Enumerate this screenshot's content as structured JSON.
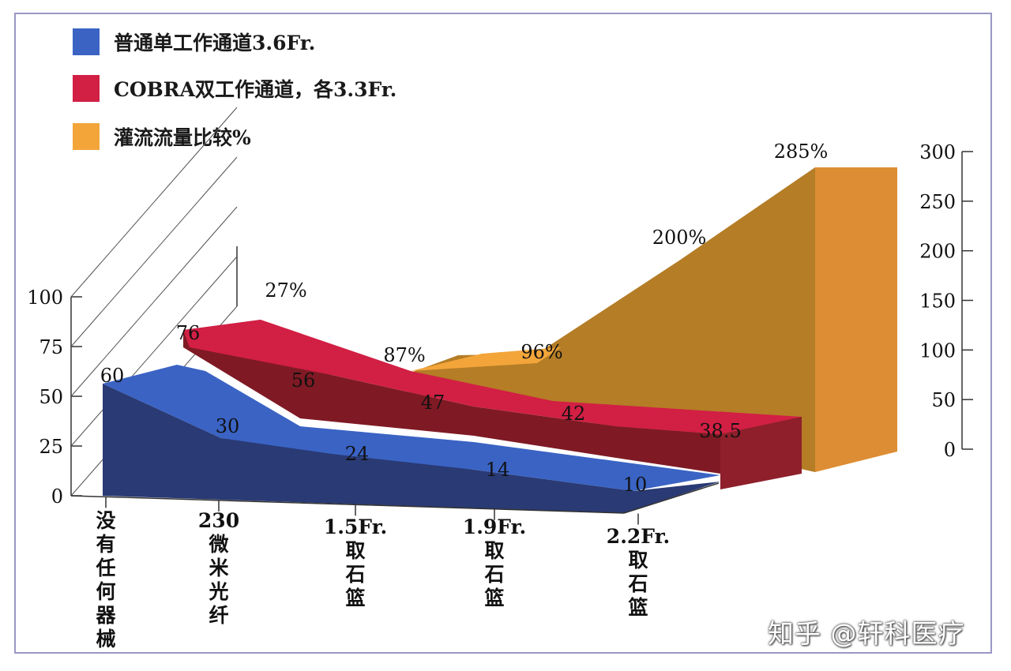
{
  "chart_data": {
    "type": "area",
    "categories": [
      "没有任何器械",
      "230微米光纤",
      "1.5Fr.取石篮",
      "1.9Fr.取石篮",
      "2.2Fr.取石篮"
    ],
    "category_lines": [
      [
        "没",
        "有",
        "任",
        "何",
        "器",
        "械"
      ],
      [
        "230",
        "微",
        "米",
        "光",
        "纤"
      ],
      [
        "1.5Fr.",
        "取",
        "石",
        "篮"
      ],
      [
        "1.9Fr.",
        "取",
        "石",
        "篮"
      ],
      [
        "2.2Fr.",
        "取",
        "石",
        "篮"
      ]
    ],
    "series": [
      {
        "name": "普通单工作通道3.6Fr.",
        "values": [
          60,
          30,
          24,
          14,
          10
        ],
        "labels": [
          "60",
          "30",
          "24",
          "14",
          "10"
        ],
        "color": "#3a63c4",
        "dark": "#2a3a74"
      },
      {
        "name": "COBRA双工作通道，各3.3Fr.",
        "values": [
          76,
          56,
          47,
          42,
          38.5
        ],
        "labels": [
          "76",
          "56",
          "47",
          "42",
          "38.5"
        ],
        "color": "#d21f44",
        "dark": "#7f1a24"
      },
      {
        "name": "灌流流量比较%",
        "values": [
          27,
          87,
          96,
          200,
          285
        ],
        "labels": [
          "27%",
          "87%",
          "96%",
          "200%",
          "285%"
        ],
        "color": "#f3a53a",
        "dark": "#b47d26"
      }
    ],
    "left_axis": {
      "ticks": [
        "0",
        "25",
        "50",
        "75",
        "100"
      ],
      "ylim": [
        0,
        100
      ]
    },
    "right_axis": {
      "ticks": [
        "0",
        "50",
        "100",
        "150",
        "200",
        "250",
        "300"
      ],
      "ylim": [
        0,
        300
      ]
    },
    "legend_position": "top-left"
  },
  "legend": [
    {
      "label": "普通单工作通道3.6Fr.",
      "color": "#3a63c4"
    },
    {
      "label": "COBRA双工作通道，各3.3Fr.",
      "color": "#d21f44"
    },
    {
      "label": "灌流流量比较%",
      "color": "#f3a53a"
    }
  ],
  "watermark": "知乎 @轩科医疗"
}
